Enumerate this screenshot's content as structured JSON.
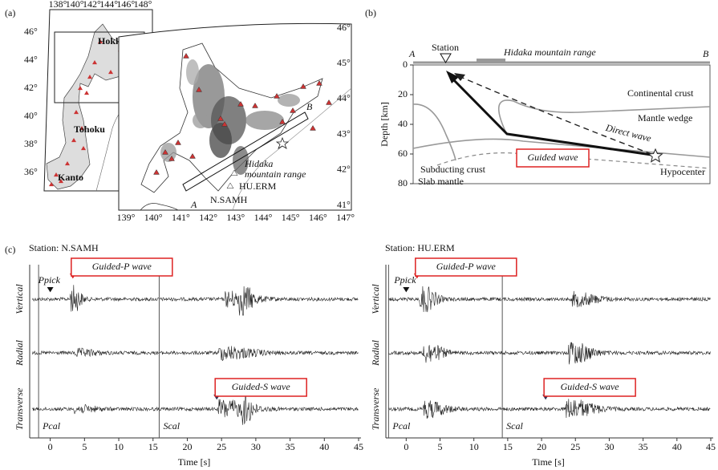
{
  "panel_a": {
    "label": "(a)",
    "inset_lon_labels": [
      "138°",
      "140°",
      "142°",
      "144°",
      "146°",
      "148°"
    ],
    "inset_lat_labels": [
      "46°",
      "44°",
      "42°",
      "40°",
      "38°",
      "36°"
    ],
    "main_lat_labels": [
      "46°",
      "45°",
      "44°",
      "43°",
      "42°",
      "41°"
    ],
    "main_lon_labels": [
      "139°",
      "140°",
      "141°",
      "142°",
      "143°",
      "144°",
      "145°",
      "146°",
      "147°"
    ],
    "regions": [
      "Hokkaido",
      "Tohoku",
      "Kanto"
    ],
    "range_label": [
      "Hidaka",
      "mountain range"
    ],
    "stations": [
      "HU.ERM",
      "N.SAMH"
    ],
    "profile_ends": [
      "A",
      "B"
    ]
  },
  "panel_b": {
    "label": "(b)",
    "profile_ends": [
      "A",
      "B"
    ],
    "station": "Station",
    "range": "Hidaka mountain range",
    "depth_axis": {
      "label": "Depth [km]",
      "ylim": [
        0,
        80
      ],
      "ticks": [
        0,
        20,
        40,
        60,
        80
      ]
    },
    "continental_crust": "Continental crust",
    "mantle_wedge": "Mantle wedge",
    "direct_wave": "Direct wave",
    "guided_wave": "Guided wave",
    "hypocenter": "Hypocenter",
    "subducting_crust": "Subducting crust",
    "slab_mantle": "Slab mantle"
  },
  "panel_c": {
    "label": "(c)",
    "time_axis": {
      "label": "Time [s]",
      "xlim": [
        -3,
        45
      ],
      "ticks": [
        0,
        5,
        10,
        15,
        20,
        25,
        30,
        35,
        40,
        45
      ]
    },
    "components": [
      "Vertical",
      "Radial",
      "Transverse"
    ],
    "guided_p": "Guided-P wave",
    "guided_s": "Guided-S wave",
    "ppick": "Ppick",
    "pcal": "Pcal",
    "scal": "Scal",
    "stations": [
      {
        "title": "Station: N.SAMH",
        "times": {
          "ppick": 0,
          "guided_p": 3.3,
          "guided_s": 24.3,
          "pcal": -1.7,
          "scal": 15.9
        }
      },
      {
        "title": "Station: HU.ERM",
        "times": {
          "ppick": 0,
          "guided_p": 1.6,
          "guided_s": 20.6,
          "pcal": -2.6,
          "scal": 14.2
        }
      }
    ]
  }
}
